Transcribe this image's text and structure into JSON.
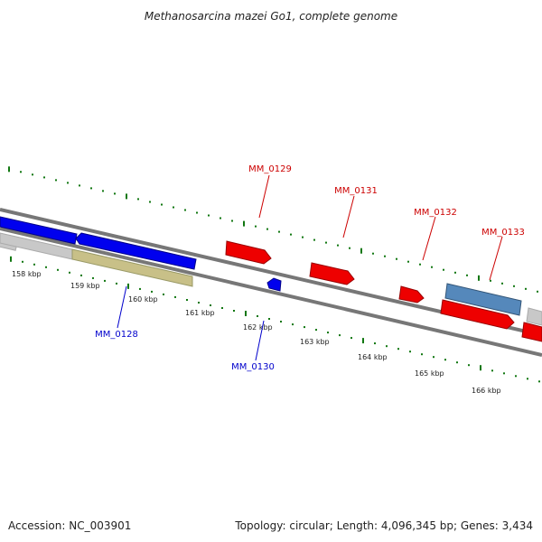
{
  "title": "Methanosarcina mazei Go1, complete genome",
  "footer": {
    "accession": "Accession: NC_003901",
    "summary": "Topology: circular; Length: 4,096,345 bp; Genes: 3,434"
  },
  "colors": {
    "forward_gene": "#ee0000",
    "reverse_gene": "#0000ee",
    "forward_label": "#cc0000",
    "reverse_label": "#0000cc",
    "tick": "#117711",
    "backbone": "#777777",
    "grey_feature": "#c8c8c8",
    "olive_feature": "#c8c088",
    "steel_feature": "#5588bb"
  },
  "ticks": [
    "158 kbp",
    "159 kbp",
    "160 kbp",
    "161 kbp",
    "162 kbp",
    "163 kbp",
    "164 kbp",
    "165 kbp",
    "166 kbp"
  ],
  "gene_labels": {
    "mm0128": "MM_0128",
    "mm0129": "MM_0129",
    "mm0130": "MM_0130",
    "mm0131": "MM_0131",
    "mm0132": "MM_0132",
    "mm0133": "MM_0133"
  }
}
